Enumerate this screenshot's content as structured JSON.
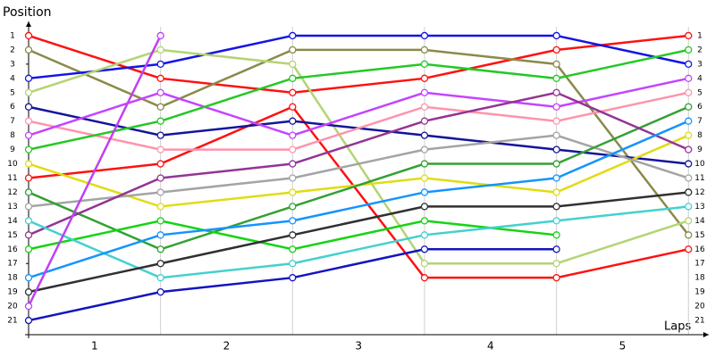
{
  "chart_data": {
    "type": "line",
    "ylabel": "Position",
    "xlabel": "Laps",
    "x": [
      0,
      1,
      2,
      3,
      4,
      5
    ],
    "xlim": [
      0,
      5.12
    ],
    "xticks": [
      {
        "value": 0.5,
        "label": "1"
      },
      {
        "value": 1.5,
        "label": "2"
      },
      {
        "value": 2.5,
        "label": "3"
      },
      {
        "value": 3.5,
        "label": "4"
      },
      {
        "value": 4.5,
        "label": "5"
      }
    ],
    "ylim": [
      22,
      0
    ],
    "yticks": [
      1,
      2,
      3,
      4,
      5,
      6,
      7,
      8,
      9,
      10,
      11,
      12,
      13,
      14,
      15,
      16,
      17,
      18,
      19,
      20,
      21
    ],
    "grid": true,
    "series": [
      {
        "color": "#ff1010",
        "values": [
          1,
          4,
          5,
          4,
          2,
          1
        ]
      },
      {
        "color": "#ff1010",
        "values": [
          11,
          10,
          6,
          18,
          18,
          16
        ]
      },
      {
        "color": "#8a8a4a",
        "values": [
          2,
          6,
          2,
          2,
          3,
          15
        ]
      },
      {
        "color": "#1414e6",
        "values": [
          4,
          3,
          1,
          1,
          1,
          3
        ]
      },
      {
        "color": "#b4d474",
        "values": [
          5,
          2,
          3,
          17,
          17,
          14
        ]
      },
      {
        "color": "#14149c",
        "values": [
          6,
          8,
          7,
          8,
          9,
          10
        ]
      },
      {
        "color": "#ff94ac",
        "values": [
          7,
          9,
          9,
          6,
          7,
          5
        ]
      },
      {
        "color": "#c444ff",
        "values": [
          8,
          5,
          8,
          5,
          6,
          4
        ]
      },
      {
        "color": "#24c824",
        "values": [
          9,
          7,
          4,
          3,
          4,
          2
        ]
      },
      {
        "color": "#e0dc14",
        "values": [
          10,
          13,
          12,
          11,
          12,
          8
        ]
      },
      {
        "color": "#a4a4a4",
        "values": [
          13,
          12,
          11,
          9,
          8,
          11
        ]
      },
      {
        "color": "#34a034",
        "values": [
          12,
          16,
          13,
          10,
          10,
          6
        ]
      },
      {
        "color": "#943494",
        "values": [
          15,
          11,
          10,
          7,
          5,
          9
        ]
      },
      {
        "color": "#14d414",
        "values": [
          16,
          14,
          16,
          14,
          15,
          null
        ]
      },
      {
        "color": "#44d0d0",
        "values": [
          14,
          18,
          17,
          15,
          14,
          13
        ]
      },
      {
        "color": "#1494ff",
        "values": [
          18,
          15,
          14,
          12,
          11,
          7
        ]
      },
      {
        "color": "#303030",
        "values": [
          19,
          17,
          15,
          13,
          13,
          12
        ]
      },
      {
        "color": "#c040f4",
        "values": [
          20,
          1,
          null,
          null,
          null,
          null
        ]
      },
      {
        "color": "#1414c0",
        "values": [
          21,
          19,
          18,
          16,
          16,
          null
        ]
      }
    ]
  }
}
